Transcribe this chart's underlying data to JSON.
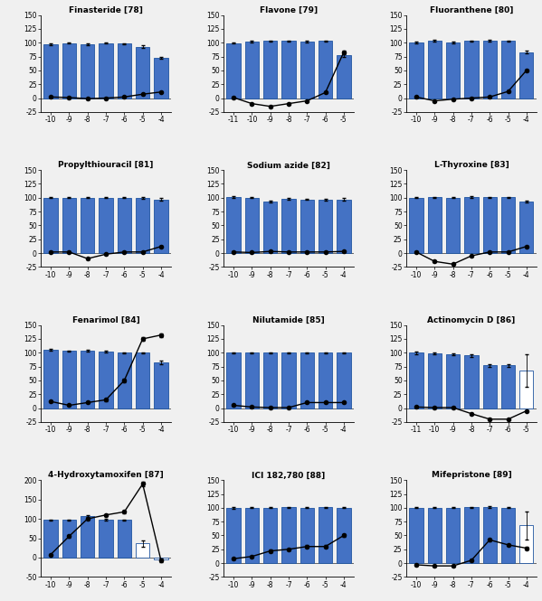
{
  "subplots": [
    {
      "title": "Finasteride [78]",
      "x_ticks": [
        -10,
        -9,
        -8,
        -7,
        -6,
        -5,
        -4
      ],
      "bar_values": [
        97,
        99,
        97,
        99,
        98,
        93,
        73
      ],
      "bar_errors": [
        2,
        1,
        1,
        1,
        1,
        2,
        2
      ],
      "line_values": [
        2,
        1,
        -1,
        0,
        2,
        7,
        11
      ],
      "line_errors": [
        1,
        1,
        1,
        1,
        1,
        1,
        1
      ],
      "ylim": [
        -25,
        150
      ],
      "yticks": [
        -25,
        0,
        25,
        50,
        75,
        100,
        125,
        150
      ],
      "bar_colors_flag": [
        1,
        1,
        1,
        1,
        1,
        1,
        1
      ]
    },
    {
      "title": "Flavone [79]",
      "x_ticks": [
        -11,
        -10,
        -9,
        -8,
        -7,
        -6,
        -5
      ],
      "bar_values": [
        99,
        102,
        103,
        103,
        102,
        103,
        77
      ],
      "bar_errors": [
        1,
        1,
        1,
        1,
        1,
        1,
        2
      ],
      "line_values": [
        1,
        -10,
        -15,
        -10,
        -5,
        10,
        83
      ],
      "line_errors": [
        1,
        1,
        1,
        1,
        1,
        1,
        2
      ],
      "ylim": [
        -25,
        150
      ],
      "yticks": [
        -25,
        0,
        25,
        50,
        75,
        100,
        125,
        150
      ],
      "bar_colors_flag": [
        1,
        1,
        1,
        1,
        1,
        1,
        1
      ]
    },
    {
      "title": "Fluoranthene [80]",
      "x_ticks": [
        -10,
        -9,
        -8,
        -7,
        -6,
        -5,
        -4
      ],
      "bar_values": [
        100,
        104,
        100,
        103,
        104,
        103,
        83
      ],
      "bar_errors": [
        2,
        2,
        2,
        1,
        2,
        1,
        2
      ],
      "line_values": [
        2,
        -5,
        -2,
        0,
        2,
        12,
        50
      ],
      "line_errors": [
        1,
        1,
        1,
        1,
        1,
        1,
        2
      ],
      "ylim": [
        -25,
        150
      ],
      "yticks": [
        -25,
        0,
        25,
        50,
        75,
        100,
        125,
        150
      ],
      "bar_colors_flag": [
        1,
        1,
        1,
        1,
        1,
        1,
        1
      ]
    },
    {
      "title": "Propylthiouracil [81]",
      "x_ticks": [
        -10,
        -9,
        -8,
        -7,
        -6,
        -5,
        -4
      ],
      "bar_values": [
        100,
        100,
        100,
        100,
        100,
        100,
        97
      ],
      "bar_errors": [
        1,
        1,
        1,
        1,
        1,
        2,
        2
      ],
      "line_values": [
        2,
        2,
        -10,
        -2,
        2,
        2,
        12
      ],
      "line_errors": [
        1,
        1,
        1,
        1,
        1,
        1,
        1
      ],
      "ylim": [
        -25,
        150
      ],
      "yticks": [
        -25,
        0,
        25,
        50,
        75,
        100,
        125,
        150
      ],
      "bar_colors_flag": [
        1,
        1,
        1,
        1,
        1,
        1,
        1
      ]
    },
    {
      "title": "Sodium azide [82]",
      "x_ticks": [
        -10,
        -9,
        -8,
        -7,
        -6,
        -5,
        -4
      ],
      "bar_values": [
        101,
        100,
        93,
        98,
        97,
        96,
        97
      ],
      "bar_errors": [
        2,
        1,
        2,
        1,
        1,
        2,
        2
      ],
      "line_values": [
        2,
        1,
        3,
        2,
        2,
        2,
        3
      ],
      "line_errors": [
        1,
        1,
        1,
        1,
        1,
        1,
        1
      ],
      "ylim": [
        -25,
        150
      ],
      "yticks": [
        -25,
        0,
        25,
        50,
        75,
        100,
        125,
        150
      ],
      "bar_colors_flag": [
        1,
        1,
        1,
        1,
        1,
        1,
        1
      ]
    },
    {
      "title": "L-Thyroxine [83]",
      "x_ticks": [
        -10,
        -9,
        -8,
        -7,
        -6,
        -5,
        -4
      ],
      "bar_values": [
        100,
        101,
        100,
        101,
        101,
        101,
        93
      ],
      "bar_errors": [
        1,
        1,
        1,
        2,
        1,
        1,
        2
      ],
      "line_values": [
        2,
        -15,
        -20,
        -5,
        2,
        2,
        12
      ],
      "line_errors": [
        1,
        1,
        1,
        1,
        1,
        1,
        1
      ],
      "ylim": [
        -25,
        150
      ],
      "yticks": [
        -25,
        0,
        25,
        50,
        75,
        100,
        125,
        150
      ],
      "bar_colors_flag": [
        1,
        1,
        1,
        1,
        1,
        1,
        1
      ]
    },
    {
      "title": "Fenarimol [84]",
      "x_ticks": [
        -10,
        -9,
        -8,
        -7,
        -6,
        -5,
        -4
      ],
      "bar_values": [
        105,
        103,
        104,
        102,
        100,
        100,
        83
      ],
      "bar_errors": [
        2,
        1,
        2,
        2,
        1,
        1,
        3
      ],
      "line_values": [
        12,
        5,
        10,
        15,
        50,
        125,
        132
      ],
      "line_errors": [
        1,
        1,
        1,
        2,
        3,
        3,
        3
      ],
      "ylim": [
        -25,
        150
      ],
      "yticks": [
        -25,
        0,
        25,
        50,
        75,
        100,
        125,
        150
      ],
      "bar_colors_flag": [
        1,
        1,
        1,
        1,
        1,
        1,
        1
      ]
    },
    {
      "title": "Nilutamide [85]",
      "x_ticks": [
        -10,
        -9,
        -8,
        -7,
        -6,
        -5,
        -4
      ],
      "bar_values": [
        100,
        100,
        100,
        100,
        100,
        100,
        100
      ],
      "bar_errors": [
        1,
        1,
        1,
        1,
        1,
        1,
        1
      ],
      "line_values": [
        5,
        2,
        1,
        1,
        10,
        10,
        10
      ],
      "line_errors": [
        1,
        1,
        1,
        1,
        1,
        1,
        1
      ],
      "ylim": [
        -25,
        150
      ],
      "yticks": [
        -25,
        0,
        25,
        50,
        75,
        100,
        125,
        150
      ],
      "bar_colors_flag": [
        1,
        1,
        1,
        1,
        1,
        1,
        1
      ]
    },
    {
      "title": "Actinomycin D [86]",
      "x_ticks": [
        -11,
        -10,
        -9,
        -8,
        -7,
        -6,
        -5
      ],
      "bar_values": [
        100,
        99,
        97,
        95,
        77,
        77,
        68
      ],
      "bar_errors": [
        2,
        1,
        2,
        2,
        2,
        2,
        30
      ],
      "line_values": [
        2,
        1,
        1,
        -10,
        -20,
        -20,
        -5
      ],
      "line_errors": [
        1,
        1,
        1,
        1,
        1,
        1,
        1
      ],
      "ylim": [
        -25,
        150
      ],
      "yticks": [
        -25,
        0,
        25,
        50,
        75,
        100,
        125,
        150
      ],
      "bar_colors_flag": [
        1,
        1,
        1,
        1,
        1,
        1,
        0
      ]
    },
    {
      "title": "4-Hydroxytamoxifen [87]",
      "x_ticks": [
        -10,
        -9,
        -8,
        -7,
        -6,
        -5,
        -4
      ],
      "bar_values": [
        97,
        97,
        108,
        98,
        97,
        37,
        -5
      ],
      "bar_errors": [
        2,
        1,
        2,
        2,
        2,
        8,
        3
      ],
      "line_values": [
        8,
        55,
        100,
        110,
        118,
        190,
        -8
      ],
      "line_errors": [
        2,
        3,
        3,
        3,
        4,
        5,
        3
      ],
      "ylim": [
        -50,
        200
      ],
      "yticks": [
        -50,
        0,
        50,
        100,
        150,
        200
      ],
      "bar_colors_flag": [
        1,
        1,
        1,
        1,
        1,
        0,
        0
      ]
    },
    {
      "title": "ICI 182,780 [88]",
      "x_ticks": [
        -10,
        -9,
        -8,
        -7,
        -6,
        -5,
        -4
      ],
      "bar_values": [
        100,
        100,
        100,
        101,
        100,
        101,
        100
      ],
      "bar_errors": [
        2,
        1,
        1,
        1,
        1,
        1,
        1
      ],
      "line_values": [
        8,
        12,
        22,
        25,
        30,
        30,
        50
      ],
      "line_errors": [
        1,
        1,
        2,
        2,
        2,
        2,
        3
      ],
      "ylim": [
        -25,
        150
      ],
      "yticks": [
        -25,
        0,
        25,
        50,
        75,
        100,
        125,
        150
      ],
      "bar_colors_flag": [
        1,
        1,
        1,
        1,
        1,
        1,
        1
      ]
    },
    {
      "title": "Mifepristone [89]",
      "x_ticks": [
        -10,
        -9,
        -8,
        -7,
        -6,
        -5,
        -4
      ],
      "bar_values": [
        100,
        100,
        100,
        101,
        101,
        100,
        68
      ],
      "bar_errors": [
        1,
        1,
        1,
        1,
        2,
        1,
        25
      ],
      "line_values": [
        -3,
        -5,
        -5,
        5,
        42,
        33,
        27
      ],
      "line_errors": [
        1,
        1,
        1,
        1,
        2,
        2,
        2
      ],
      "ylim": [
        -25,
        150
      ],
      "yticks": [
        -25,
        0,
        25,
        50,
        75,
        100,
        125,
        150
      ],
      "bar_colors_flag": [
        1,
        1,
        1,
        1,
        1,
        1,
        0
      ]
    }
  ],
  "blue_color": "#4472C4",
  "white_color": "#FFFFFF",
  "bar_edge_color": "#2055A0",
  "line_color": "#000000",
  "marker_style": "o",
  "marker_size": 3,
  "marker_fc": "#000000",
  "title_fontsize": 6.5,
  "tick_fontsize": 5.5,
  "bar_width": 0.75
}
